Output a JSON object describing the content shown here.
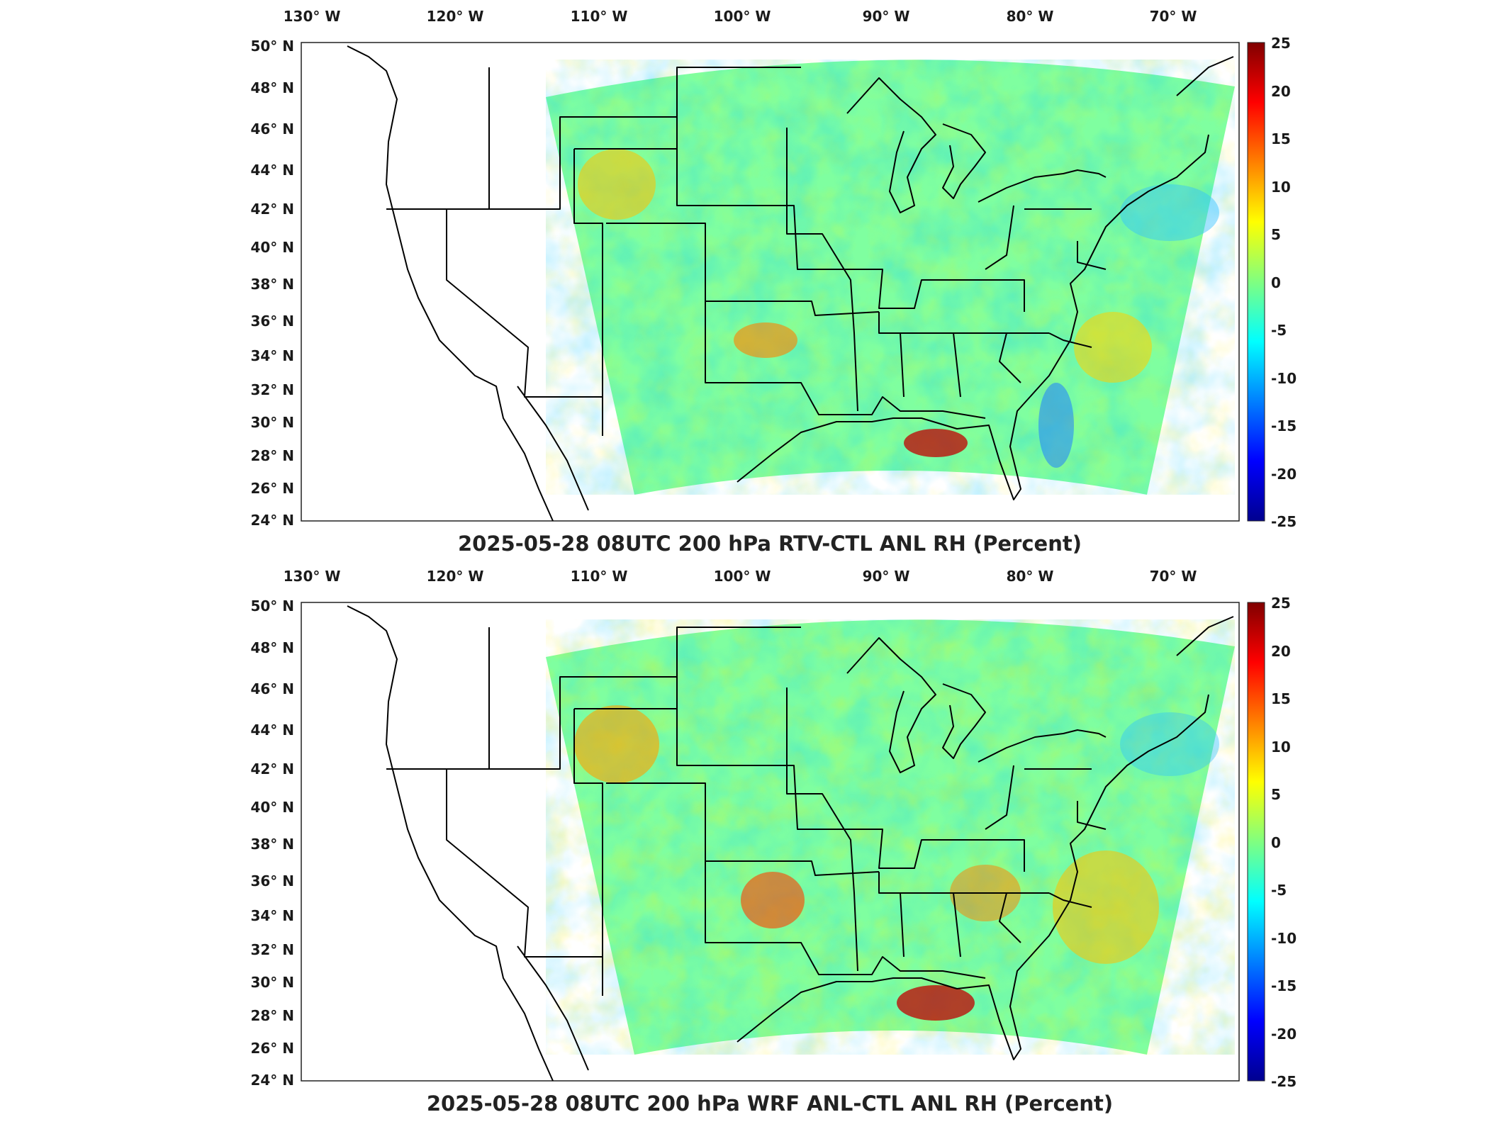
{
  "figure": {
    "panels": [
      {
        "id": "top",
        "title": "2025-05-28 08UTC 200 hPa RTV-CTL ANL RH (Percent)",
        "lon_labels": [
          "130° W",
          "120° W",
          "110° W",
          "100° W",
          "90° W",
          "80° W",
          "70° W"
        ],
        "lat_labels": [
          "50° N",
          "48° N",
          "46° N",
          "44° N",
          "42° N",
          "40° N",
          "38° N",
          "36° N",
          "34° N",
          "32° N",
          "30° N",
          "28° N",
          "26° N",
          "24° N"
        ],
        "colorbar_ticks": [
          "25",
          "20",
          "15",
          "10",
          "5",
          "0",
          "-5",
          "-10",
          "-15",
          "-20",
          "-25"
        ]
      },
      {
        "id": "bottom",
        "title": "2025-05-28 08UTC 200 hPa WRF ANL-CTL ANL RH (Percent)",
        "lon_labels": [
          "130° W",
          "120° W",
          "110° W",
          "100° W",
          "90° W",
          "80° W",
          "70° W"
        ],
        "lat_labels": [
          "50° N",
          "48° N",
          "46° N",
          "44° N",
          "42° N",
          "40° N",
          "38° N",
          "36° N",
          "34° N",
          "32° N",
          "30° N",
          "28° N",
          "26° N",
          "24° N"
        ],
        "colorbar_ticks": [
          "25",
          "20",
          "15",
          "10",
          "5",
          "0",
          "-5",
          "-10",
          "-15",
          "-20",
          "-25"
        ]
      }
    ],
    "colorbar_range": [
      -25,
      25
    ],
    "colormap": "jet",
    "colors": {
      "field_base": "#7fffa0",
      "warm": "#ffcc00",
      "hot": "#d01010",
      "cool": "#20c0ff",
      "cold": "#1060d0",
      "coast": "#000000"
    }
  }
}
